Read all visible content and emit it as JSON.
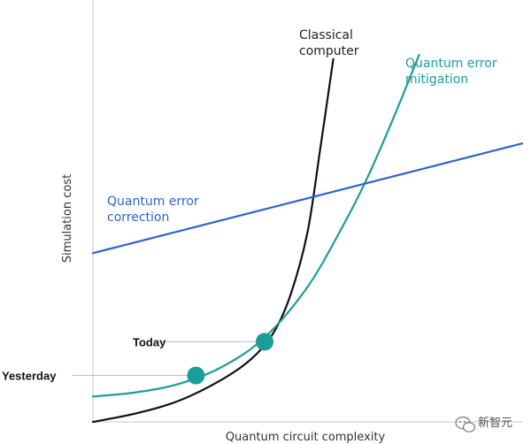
{
  "chart_data": {
    "type": "line",
    "xlabel": "Quantum circuit complexity",
    "ylabel": "Simulation cost",
    "xlim": [
      0,
      100
    ],
    "ylim": [
      0,
      100
    ],
    "grid": false,
    "legend": "none",
    "series": [
      {
        "name": "Classical computer",
        "label_lines": [
          "Classical",
          "computer"
        ],
        "color": "#111111",
        "x": [
          0,
          10,
          20,
          30,
          37,
          42,
          46,
          50,
          53,
          56
        ],
        "y": [
          0,
          2,
          5,
          10,
          15,
          21,
          30,
          45,
          65,
          86
        ]
      },
      {
        "name": "Quantum error mitigation",
        "label_lines": [
          "Quantum error",
          "mitigation"
        ],
        "color": "#1a9e96",
        "x": [
          0,
          10,
          20,
          30,
          40,
          50,
          58,
          64,
          70,
          76
        ],
        "y": [
          6,
          7,
          9,
          13,
          20,
          32,
          46,
          58,
          72,
          87
        ]
      },
      {
        "name": "Quantum error correction",
        "label_lines": [
          "Quantum error",
          "correction"
        ],
        "color": "#2c62d8",
        "x": [
          0,
          100
        ],
        "y": [
          40,
          66
        ]
      }
    ],
    "points": [
      {
        "label": "Today",
        "x": 40,
        "y": 19,
        "color": "#1a9e96"
      },
      {
        "label": "Yesterday",
        "x": 24,
        "y": 11,
        "color": "#1a9e96"
      }
    ]
  },
  "watermark": {
    "icon": "wechat-icon",
    "text": "新智元"
  }
}
